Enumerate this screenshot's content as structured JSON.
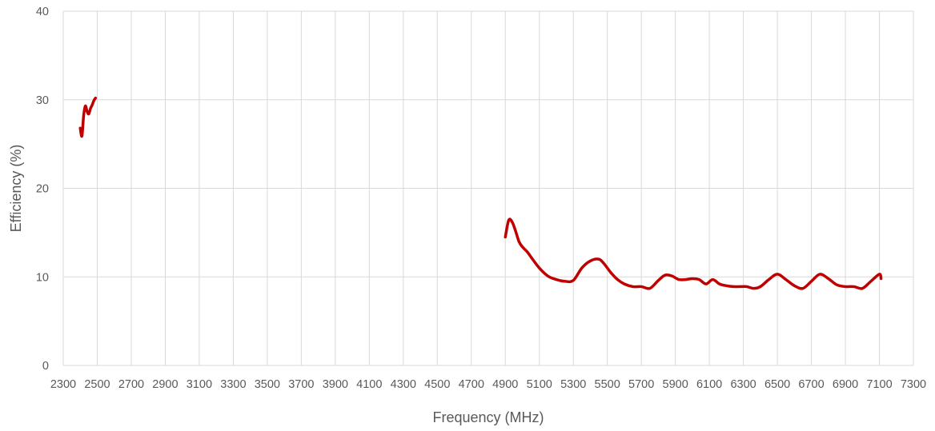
{
  "chart_data": {
    "type": "line",
    "title": "",
    "xlabel": "Frequency (MHz)",
    "ylabel": "Efficiency (%)",
    "xlim": [
      2300,
      7300
    ],
    "ylim": [
      0,
      40
    ],
    "x_ticks": [
      2300,
      2500,
      2700,
      2900,
      3100,
      3300,
      3500,
      3700,
      3900,
      4100,
      4300,
      4500,
      4700,
      4900,
      5100,
      5300,
      5500,
      5700,
      5900,
      6100,
      6300,
      6500,
      6700,
      6900,
      7100,
      7300
    ],
    "x_tick_labels": [
      "2300",
      "2500",
      "2700",
      "2900",
      "3100",
      "3300",
      "3500",
      "3700",
      "3900",
      "4100",
      "4300",
      "4500",
      "4700",
      "4900",
      "5100",
      "5300",
      "5500",
      "5700",
      "5900",
      "6100",
      "6300",
      "6500",
      "6700",
      "6900",
      "7100",
      "7300"
    ],
    "y_ticks": [
      0,
      10,
      20,
      30,
      40
    ],
    "y_tick_labels": [
      "0",
      "10",
      "20",
      "30",
      "40"
    ],
    "grid": {
      "vertical": true,
      "horizontal": true
    },
    "legend": "none",
    "series_color": "#c00000",
    "series": [
      {
        "segments": [
          {
            "x": [
              2400,
              2410,
              2420,
              2430,
              2440,
              2450,
              2460,
              2470,
              2480,
              2490
            ],
            "y": [
              26.8,
              25.9,
              28.2,
              29.3,
              28.7,
              28.4,
              29.0,
              29.4,
              29.9,
              30.2
            ]
          },
          {
            "x": [
              4900,
              4920,
              4940,
              4960,
              4980,
              5000,
              5030,
              5060,
              5100,
              5150,
              5200,
              5250,
              5300,
              5350,
              5400,
              5450,
              5480,
              5520,
              5560,
              5600,
              5650,
              5700,
              5750,
              5800,
              5840,
              5880,
              5920,
              5960,
              6000,
              6040,
              6080,
              6120,
              6160,
              6200,
              6240,
              6280,
              6320,
              6360,
              6400,
              6450,
              6500,
              6550,
              6600,
              6650,
              6700,
              6750,
              6800,
              6850,
              6900,
              6950,
              7000,
              7050,
              7100,
              7110
            ],
            "y": [
              14.5,
              16.4,
              16.2,
              15.2,
              14.0,
              13.4,
              12.8,
              12.0,
              11.0,
              10.1,
              9.7,
              9.5,
              9.6,
              11.0,
              11.8,
              12.0,
              11.5,
              10.5,
              9.7,
              9.2,
              8.9,
              8.9,
              8.7,
              9.6,
              10.2,
              10.1,
              9.7,
              9.7,
              9.8,
              9.7,
              9.2,
              9.7,
              9.2,
              9.0,
              8.9,
              8.9,
              8.9,
              8.7,
              8.9,
              9.7,
              10.3,
              9.7,
              9.0,
              8.7,
              9.5,
              10.3,
              9.8,
              9.1,
              8.9,
              8.9,
              8.7,
              9.5,
              10.3,
              9.8
            ]
          }
        ]
      }
    ]
  }
}
